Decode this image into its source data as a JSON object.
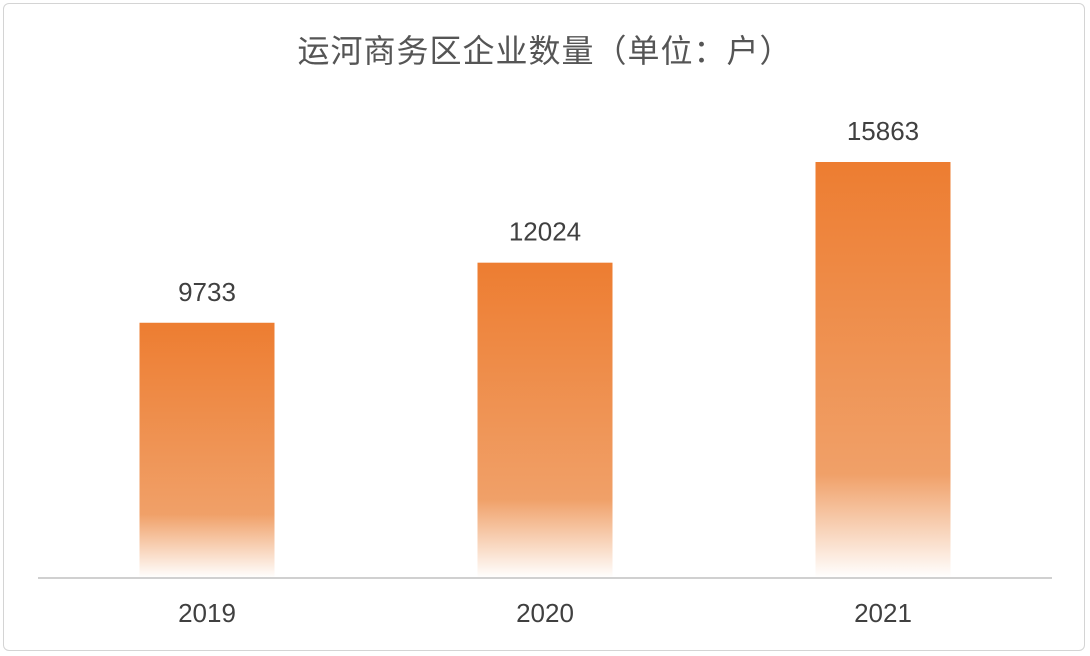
{
  "chart_data": {
    "type": "bar",
    "title": "运河商务区企业数量（单位：户）",
    "categories": [
      "2019",
      "2020",
      "2021"
    ],
    "values": [
      9733,
      12024,
      15863
    ],
    "xlabel": "",
    "ylabel": "",
    "ylim": [
      0,
      18000
    ],
    "grid": false,
    "legend": "none",
    "colors": {
      "bar_top": "#ED7D31",
      "bar_mid": "#F0A068",
      "bar_bottom": "#FFFFFF",
      "axis": "#D0D0D0",
      "title": "#555555",
      "label": "#404040"
    }
  }
}
